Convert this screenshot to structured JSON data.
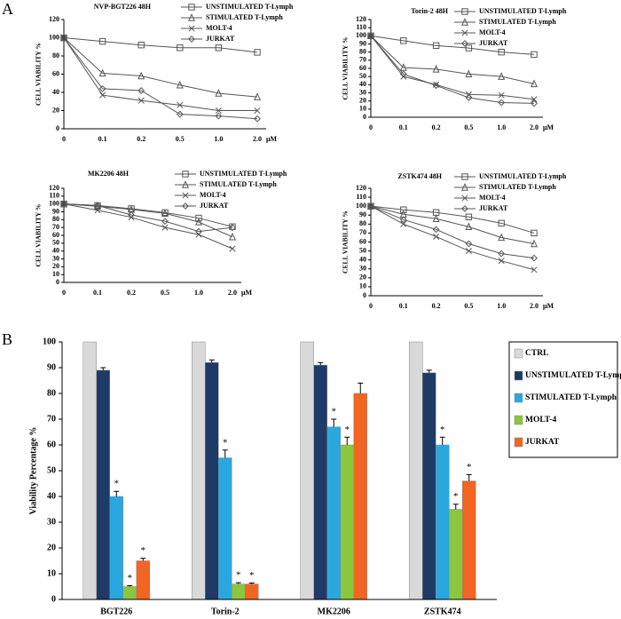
{
  "panels": [
    "A",
    "B"
  ],
  "chart_data": [
    {
      "type": "line",
      "title": "NVP-BGT226  48H",
      "ylabel": "CELL VIABILITY %",
      "xlabel": "μM",
      "categories": [
        "0",
        "0.1",
        "0.2",
        "0.5",
        "1.0",
        "2.0"
      ],
      "ylim": [
        0,
        120
      ],
      "yticks": [
        0,
        20,
        40,
        60,
        80,
        100,
        120
      ],
      "series": [
        {
          "name": "UNSTIMULATED T-Lymph",
          "color": "#555555",
          "marker": "square",
          "values": [
            100,
            96,
            92,
            89,
            89,
            84
          ]
        },
        {
          "name": "STIMULATED T-Lymph",
          "color": "#555555",
          "marker": "triangle",
          "values": [
            100,
            61,
            58,
            48,
            39,
            35
          ]
        },
        {
          "name": "MOLT-4",
          "color": "#555555",
          "marker": "x",
          "values": [
            100,
            37,
            31,
            26,
            20,
            20
          ]
        },
        {
          "name": "JURKAT",
          "color": "#555555",
          "marker": "diamond",
          "values": [
            100,
            44,
            42,
            16,
            14,
            11
          ]
        }
      ]
    },
    {
      "type": "line",
      "title": "Torin-2  48H",
      "ylabel": "CELL VIABILITY %",
      "xlabel": "μM",
      "categories": [
        "0",
        "0.1",
        "0.2",
        "0.5",
        "1.0",
        "2.0"
      ],
      "ylim": [
        0,
        120
      ],
      "yticks": [
        0,
        10,
        20,
        30,
        40,
        50,
        60,
        70,
        80,
        90,
        100,
        110,
        120
      ],
      "series": [
        {
          "name": "UNSTIMULATED T-Lymph",
          "color": "#555555",
          "marker": "square",
          "values": [
            100,
            94,
            88,
            85,
            80,
            77
          ]
        },
        {
          "name": "STIMULATED T-Lymph",
          "color": "#555555",
          "marker": "triangle",
          "values": [
            100,
            61,
            59,
            53,
            50,
            41
          ]
        },
        {
          "name": "MOLT-4",
          "color": "#555555",
          "marker": "x",
          "values": [
            100,
            50,
            40,
            28,
            27,
            22
          ]
        },
        {
          "name": "JURKAT",
          "color": "#555555",
          "marker": "diamond",
          "values": [
            100,
            53,
            39,
            24,
            18,
            17
          ]
        }
      ]
    },
    {
      "type": "line",
      "title": "MK2206 48H",
      "ylabel": "CELL VIABILITY %",
      "xlabel": "μM",
      "categories": [
        "0",
        "0.1",
        "0.2",
        "0.5",
        "1.0",
        "2.0"
      ],
      "ylim": [
        0,
        120
      ],
      "yticks": [
        0,
        10,
        20,
        30,
        40,
        50,
        60,
        70,
        80,
        90,
        100,
        110,
        120
      ],
      "series": [
        {
          "name": "UNSTIMULATED T-Lymph",
          "color": "#555555",
          "marker": "square",
          "values": [
            100,
            98,
            94,
            89,
            82,
            71
          ]
        },
        {
          "name": "STIMULATED T-Lymph",
          "color": "#555555",
          "marker": "triangle",
          "values": [
            100,
            97,
            93,
            88,
            77,
            58
          ]
        },
        {
          "name": "MOLT-4",
          "color": "#555555",
          "marker": "x",
          "values": [
            100,
            92,
            83,
            70,
            61,
            43
          ]
        },
        {
          "name": "JURKAT",
          "color": "#555555",
          "marker": "diamond",
          "values": [
            100,
            98,
            86,
            78,
            65,
            70
          ]
        }
      ]
    },
    {
      "type": "line",
      "title": "ZSTK474  48H",
      "ylabel": "CELL VIABILITY %",
      "xlabel": "μM",
      "categories": [
        "0",
        "0.1",
        "0.2",
        "0.5",
        "1.0",
        "2.0"
      ],
      "ylim": [
        0,
        120
      ],
      "yticks": [
        0,
        10,
        20,
        30,
        40,
        50,
        60,
        70,
        80,
        90,
        100,
        110,
        120
      ],
      "series": [
        {
          "name": "UNSTIMULATED T-Lymph",
          "color": "#555555",
          "marker": "square",
          "values": [
            100,
            96,
            93,
            88,
            81,
            70
          ]
        },
        {
          "name": "STIMULATED T-Lymph",
          "color": "#555555",
          "marker": "triangle",
          "values": [
            100,
            91,
            86,
            77,
            65,
            58
          ]
        },
        {
          "name": "MOLT-4",
          "color": "#555555",
          "marker": "x",
          "values": [
            100,
            80,
            66,
            50,
            39,
            29
          ]
        },
        {
          "name": "JURKAT",
          "color": "#555555",
          "marker": "diamond",
          "values": [
            100,
            85,
            74,
            58,
            47,
            42
          ]
        }
      ]
    },
    {
      "type": "bar",
      "ylabel": "Viability Percentage %",
      "categories": [
        "BGT226",
        "Torin-2",
        "MK2206",
        "ZSTK474"
      ],
      "ylim": [
        0,
        100
      ],
      "yticks": [
        0,
        10,
        20,
        30,
        40,
        50,
        60,
        70,
        80,
        90,
        100
      ],
      "series": [
        {
          "name": "CTRL",
          "color": "#d9d9d9",
          "values": [
            100,
            100,
            100,
            100
          ],
          "errors": [
            0,
            0,
            0,
            0
          ],
          "significance": [
            null,
            null,
            null,
            null
          ]
        },
        {
          "name": "UNSTIMULATED T-Lymph",
          "color": "#1f3a66",
          "values": [
            89,
            92,
            91,
            88
          ],
          "errors": [
            1,
            1,
            1,
            1
          ],
          "significance": [
            null,
            null,
            null,
            null
          ]
        },
        {
          "name": "STIMULATED T-Lymph",
          "color": "#29a8e0",
          "values": [
            40,
            55,
            67,
            60
          ],
          "errors": [
            2,
            3,
            3,
            3
          ],
          "significance": [
            "*",
            "*",
            "*",
            "*"
          ]
        },
        {
          "name": "MOLT-4",
          "color": "#8cc63f",
          "values": [
            5,
            6,
            60,
            35
          ],
          "errors": [
            0.4,
            0.5,
            3,
            2
          ],
          "significance": [
            "*",
            "*",
            "*",
            "*"
          ]
        },
        {
          "name": "JURKAT",
          "color": "#f26522",
          "values": [
            15,
            6,
            80,
            46
          ],
          "errors": [
            1,
            0.4,
            4,
            2.5
          ],
          "significance": [
            "*",
            "*",
            null,
            "*"
          ]
        }
      ]
    }
  ]
}
